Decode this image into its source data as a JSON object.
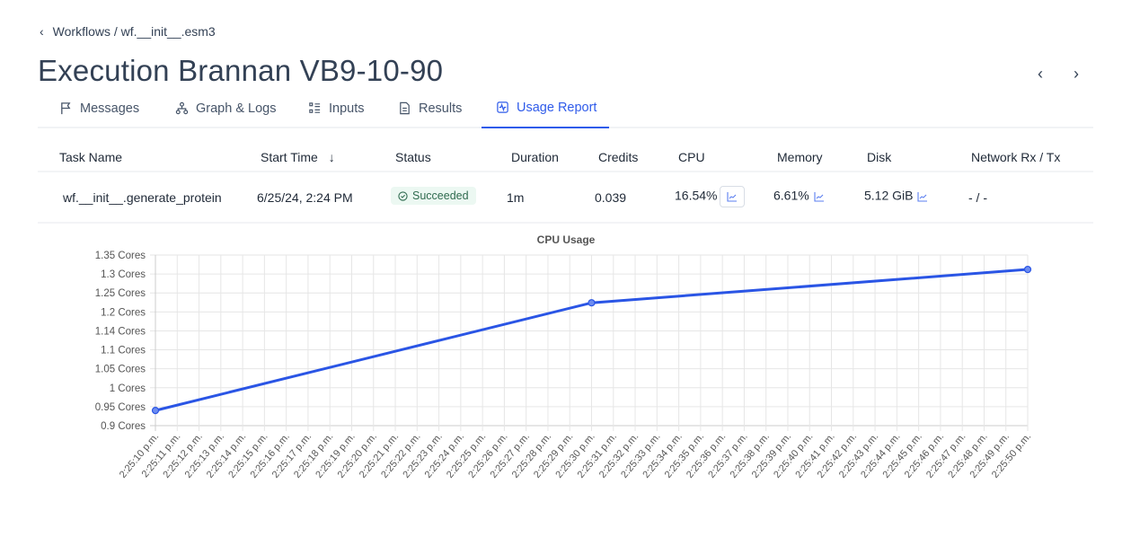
{
  "breadcrumb": {
    "text": "Workflows / wf.__init__.esm3"
  },
  "title": "Execution Brannan VB9-10-90",
  "tabs": [
    {
      "label": "Messages"
    },
    {
      "label": "Graph & Logs"
    },
    {
      "label": "Inputs"
    },
    {
      "label": "Results"
    },
    {
      "label": "Usage Report",
      "active": true
    }
  ],
  "table": {
    "headers": [
      "Task Name",
      "Start Time",
      "Status",
      "Duration",
      "Credits",
      "CPU",
      "Memory",
      "Disk",
      "Network Rx / Tx"
    ],
    "row": {
      "task": "wf.__init__.generate_protein",
      "start": "6/25/24, 2:24 PM",
      "status": "Succeeded",
      "duration": "1m",
      "credits": "0.039",
      "cpu": "16.54%",
      "memory": "6.61%",
      "disk": "5.12 GiB",
      "network": "- / -"
    }
  },
  "colors": {
    "accent": "#2f5bea",
    "line": "#2a55e5"
  },
  "chart_data": {
    "type": "line",
    "title": "CPU Usage",
    "xlabel": "",
    "ylabel": "",
    "ylim": [
      0.9,
      1.35
    ],
    "yticks": [
      "1.35 Cores",
      "1.3 Cores",
      "1.25 Cores",
      "1.2 Cores",
      "1.14 Cores",
      "1.1 Cores",
      "1.05 Cores",
      "1 Cores",
      "0.95 Cores",
      "0.9 Cores"
    ],
    "xticks": [
      "2:25:10 p.m.",
      "2:25:11 p.m.",
      "2:25:12 p.m.",
      "2:25:13 p.m.",
      "2:25:14 p.m.",
      "2:25:15 p.m.",
      "2:25:16 p.m.",
      "2:25:17 p.m.",
      "2:25:18 p.m.",
      "2:25:19 p.m.",
      "2:25:20 p.m.",
      "2:25:21 p.m.",
      "2:25:22 p.m.",
      "2:25:23 p.m.",
      "2:25:24 p.m.",
      "2:25:25 p.m.",
      "2:25:26 p.m.",
      "2:25:27 p.m.",
      "2:25:28 p.m.",
      "2:25:29 p.m.",
      "2:25:30 p.m.",
      "2:25:31 p.m.",
      "2:25:32 p.m.",
      "2:25:33 p.m.",
      "2:25:34 p.m.",
      "2:25:35 p.m.",
      "2:25:36 p.m.",
      "2:25:37 p.m.",
      "2:25:38 p.m.",
      "2:25:39 p.m.",
      "2:25:40 p.m.",
      "2:25:41 p.m.",
      "2:25:42 p.m.",
      "2:25:43 p.m.",
      "2:25:44 p.m.",
      "2:25:45 p.m.",
      "2:25:46 p.m.",
      "2:25:47 p.m.",
      "2:25:48 p.m.",
      "2:25:49 p.m.",
      "2:25:50 p.m."
    ],
    "series": [
      {
        "name": "CPU",
        "x": [
          10,
          30,
          50
        ],
        "values": [
          0.94,
          1.224,
          1.312
        ]
      }
    ]
  }
}
